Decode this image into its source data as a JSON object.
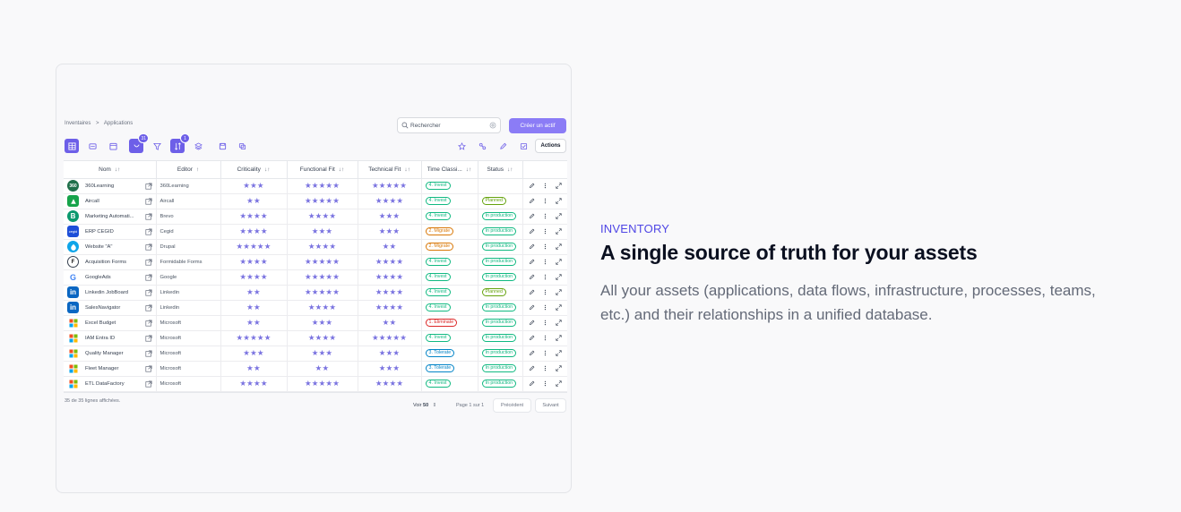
{
  "breadcrumb": [
    "Inventaires",
    "Applications"
  ],
  "search": {
    "placeholder": "Rechercher"
  },
  "create_button": "Créer un actif",
  "toolbar": {
    "badge_group": "31",
    "badge_sort": "1",
    "actions_label": "Actions"
  },
  "columns": [
    "Nom",
    "Editor",
    "Criticality",
    "Functional Fit",
    "Technical Fit",
    "Time Classi...",
    "Status"
  ],
  "rows": [
    {
      "name": "360Learning",
      "editor": "360Learning",
      "crit": 3,
      "func": 5,
      "tech": 5,
      "tc": "4. Invest",
      "status": "",
      "logo": "360",
      "logo_color": "#1f6f4a"
    },
    {
      "name": "Aircall",
      "editor": "Aircall",
      "crit": 2,
      "func": 5,
      "tech": 4,
      "tc": "4. Invest",
      "status": "Planned",
      "logo": "air",
      "logo_color": "#16a34a"
    },
    {
      "name": "Marketing Automati...",
      "editor": "Brevo",
      "crit": 4,
      "func": 4,
      "tech": 3,
      "tc": "4. Invest",
      "status": "In production",
      "logo": "B",
      "logo_color": "#0b996e"
    },
    {
      "name": "ERP CEGID",
      "editor": "Cegid",
      "crit": 4,
      "func": 3,
      "tech": 3,
      "tc": "2. Migrate",
      "status": "In production",
      "logo": "cg",
      "logo_color": "#1d4ed8"
    },
    {
      "name": "Website \"A\"",
      "editor": "Drupal",
      "crit": 5,
      "func": 4,
      "tech": 2,
      "tc": "2. Migrate",
      "status": "In production",
      "logo": "dr",
      "logo_color": "#0ea5e9"
    },
    {
      "name": "Acquisition Forms",
      "editor": "Formidable Forms",
      "crit": 4,
      "func": 5,
      "tech": 4,
      "tc": "4. Invest",
      "status": "In production",
      "logo": "F",
      "logo_color": "#ffffff"
    },
    {
      "name": "GoogleAds",
      "editor": "Google",
      "crit": 4,
      "func": 5,
      "tech": 4,
      "tc": "4. Invest",
      "status": "In production",
      "logo": "G",
      "logo_color": "#ffffff"
    },
    {
      "name": "Linkedin JobBoard",
      "editor": "Linkedin",
      "crit": 2,
      "func": 5,
      "tech": 4,
      "tc": "4. Invest",
      "status": "Planned",
      "logo": "in",
      "logo_color": "#0a66c2"
    },
    {
      "name": "SalesNavigator",
      "editor": "Linkedin",
      "crit": 2,
      "func": 4,
      "tech": 4,
      "tc": "4. Invest",
      "status": "In production",
      "logo": "in",
      "logo_color": "#0a66c2"
    },
    {
      "name": "Excel Budget",
      "editor": "Microsoft",
      "crit": 2,
      "func": 3,
      "tech": 2,
      "tc": "1. Eliminate",
      "status": "In production",
      "logo": "ms",
      "logo_color": "#ffffff"
    },
    {
      "name": "IAM Entra ID",
      "editor": "Microsoft",
      "crit": 5,
      "func": 4,
      "tech": 5,
      "tc": "4. Invest",
      "status": "In production",
      "logo": "ms",
      "logo_color": "#ffffff"
    },
    {
      "name": "Quality Manager",
      "editor": "Microsoft",
      "crit": 3,
      "func": 3,
      "tech": 3,
      "tc": "3. Tolerate",
      "status": "In production",
      "logo": "ms",
      "logo_color": "#ffffff"
    },
    {
      "name": "Fleet Manager",
      "editor": "Microsoft",
      "crit": 2,
      "func": 2,
      "tech": 3,
      "tc": "3. Tolerate",
      "status": "In production",
      "logo": "ms",
      "logo_color": "#ffffff"
    },
    {
      "name": "ETL DataFactory",
      "editor": "Microsoft",
      "crit": 4,
      "func": 5,
      "tech": 4,
      "tc": "4. Invest",
      "status": "In production",
      "logo": "ms",
      "logo_color": "#ffffff"
    }
  ],
  "tag_colors": {
    "4. Invest": "#10b981",
    "2. Migrate": "#d97706",
    "3. Tolerate": "#0284c7",
    "1. Eliminate": "#dc2626",
    "Planned": "#65a30d",
    "In production": "#10b981"
  },
  "footer": {
    "row_count": "35 de 35 lignes affichées.",
    "per_page_label": "Voir",
    "per_page_value": "50",
    "page_info": "Page 1 sur 1",
    "prev": "Précédent",
    "next": "Suivant"
  },
  "section": {
    "eyebrow": "INVENTORY",
    "title": "A single source of truth for your assets",
    "description": "All your assets (applications, data flows, infrastructure, processes, teams, etc.) and their relationships in a unified database."
  }
}
